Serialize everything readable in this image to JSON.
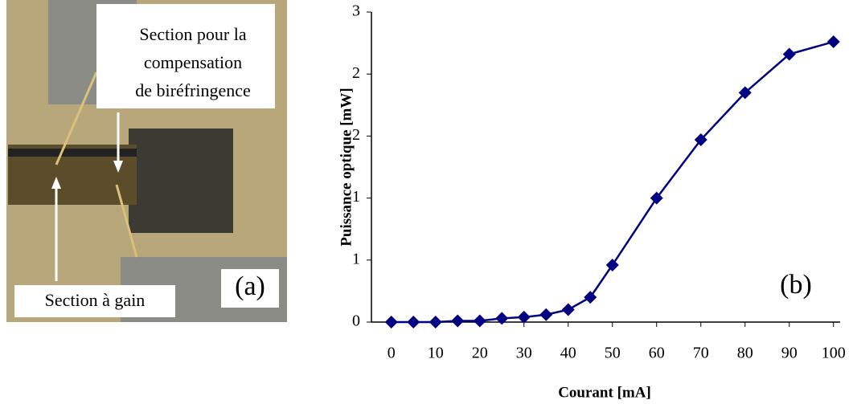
{
  "photo": {
    "labels": [
      "Section pour la",
      "compensation",
      "de biréfringence",
      "Section à gain"
    ],
    "panel_label": "(a)"
  },
  "chart_data": {
    "type": "line",
    "panel_label": "(b)",
    "xlabel": "Courant [mA]",
    "ylabel": "Puissance optique [mW]",
    "x": [
      0,
      5,
      10,
      15,
      20,
      25,
      30,
      35,
      40,
      45,
      50,
      60,
      70,
      80,
      90,
      100
    ],
    "series": [
      {
        "name": "Puissance",
        "color": "#000080",
        "values": [
          0,
          0,
          0,
          0.01,
          0.01,
          0.03,
          0.04,
          0.06,
          0.1,
          0.2,
          0.46,
          1.0,
          1.47,
          1.85,
          2.16,
          2.26
        ]
      }
    ],
    "xlim": [
      -4.5,
      101.5
    ],
    "xticks": [
      0,
      10,
      20,
      30,
      40,
      50,
      60,
      70,
      80,
      90,
      100
    ],
    "ylim": [
      0,
      2.5
    ],
    "yticks": [
      0,
      {
        "value": 0.5,
        "label": "1"
      },
      1,
      {
        "value": 1.5,
        "label": "2"
      },
      2,
      {
        "value": 2.5,
        "label": "3"
      }
    ]
  }
}
